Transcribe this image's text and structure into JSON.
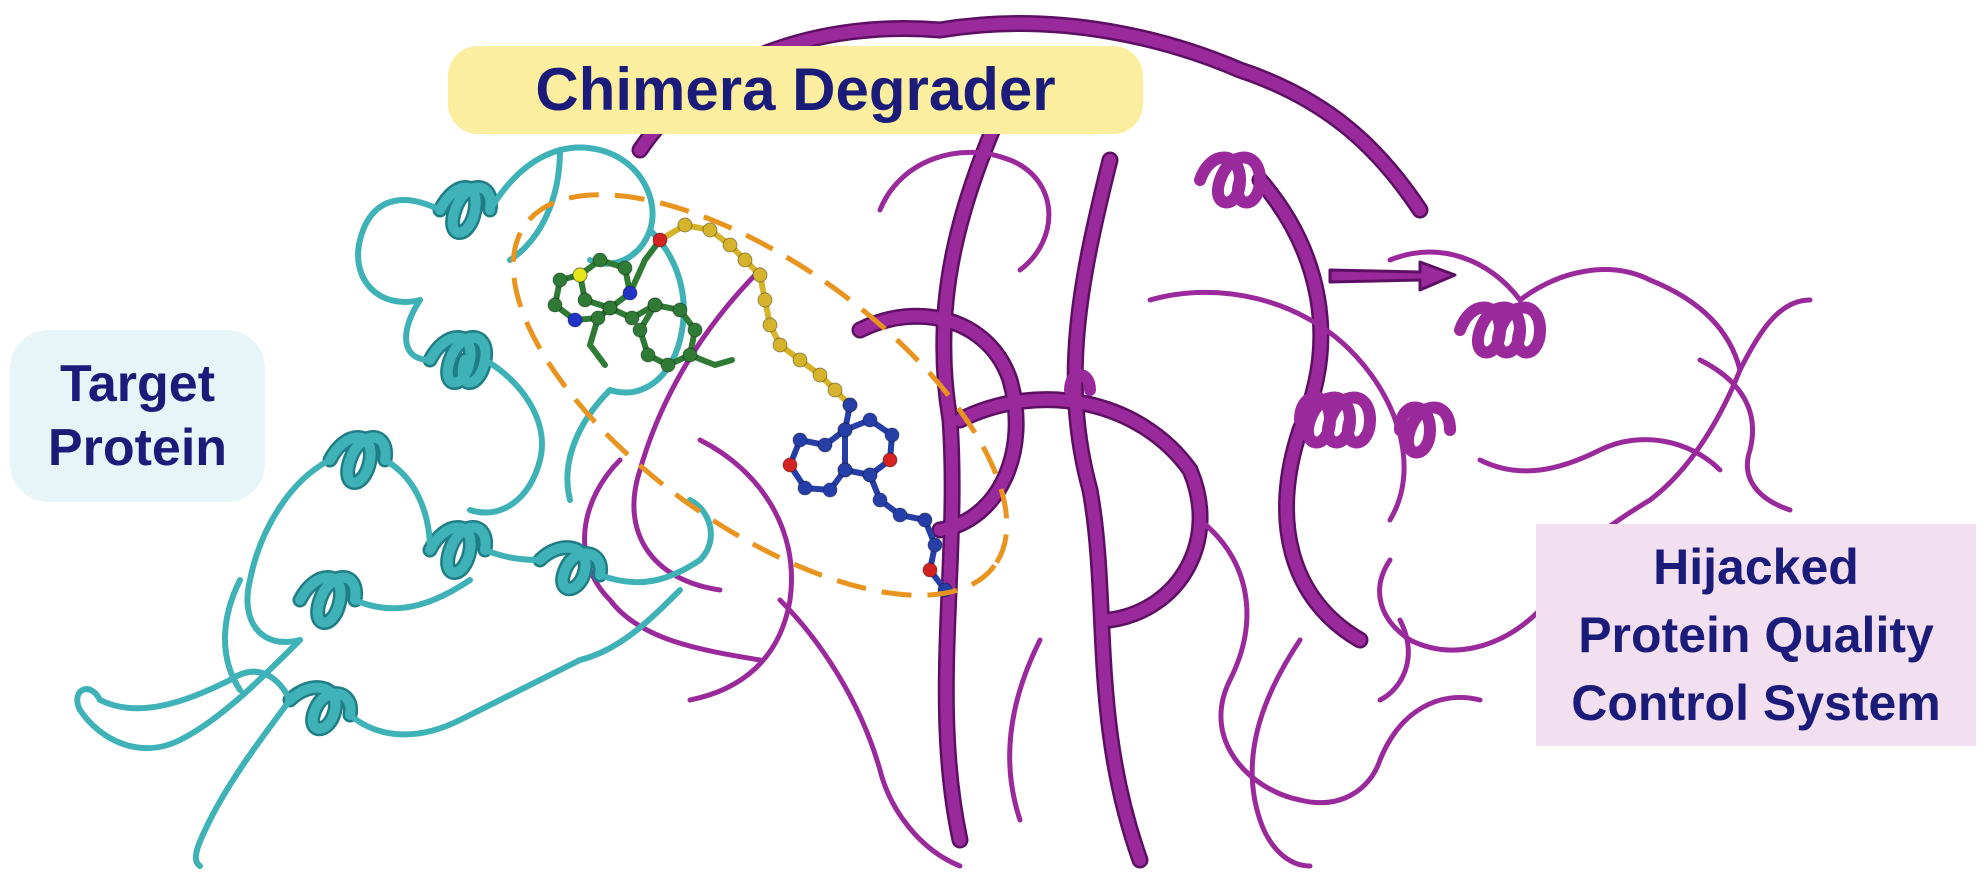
{
  "labels": {
    "chimera_degrader": "Chimera Degrader",
    "target_protein": [
      "Target",
      "Protein"
    ],
    "hijacked_system": [
      "Hijacked",
      "Protein Quality",
      "Control System"
    ]
  },
  "colors": {
    "label_text": "#1b1c7a",
    "chimera_label_bg": "#fbee9e",
    "target_label_bg": "#e8f5f8",
    "hijacked_label_bg": "#f2dff0",
    "target_protein_ribbon": "#3fb2b8",
    "target_protein_shadow": "#1f7d85",
    "e3_ligase_ribbon": "#9a2a9c",
    "e3_ligase_shadow": "#5c0f63",
    "degrader_ellipse": "#e8941e",
    "warhead_ligand": "#2f7a35",
    "linker": "#d6b32c",
    "e3_ligand": "#263fa8",
    "heteroatom_red": "#d22222",
    "heteroatom_blue": "#2233c8",
    "heteroatom_sulfur": "#e6e61a"
  }
}
